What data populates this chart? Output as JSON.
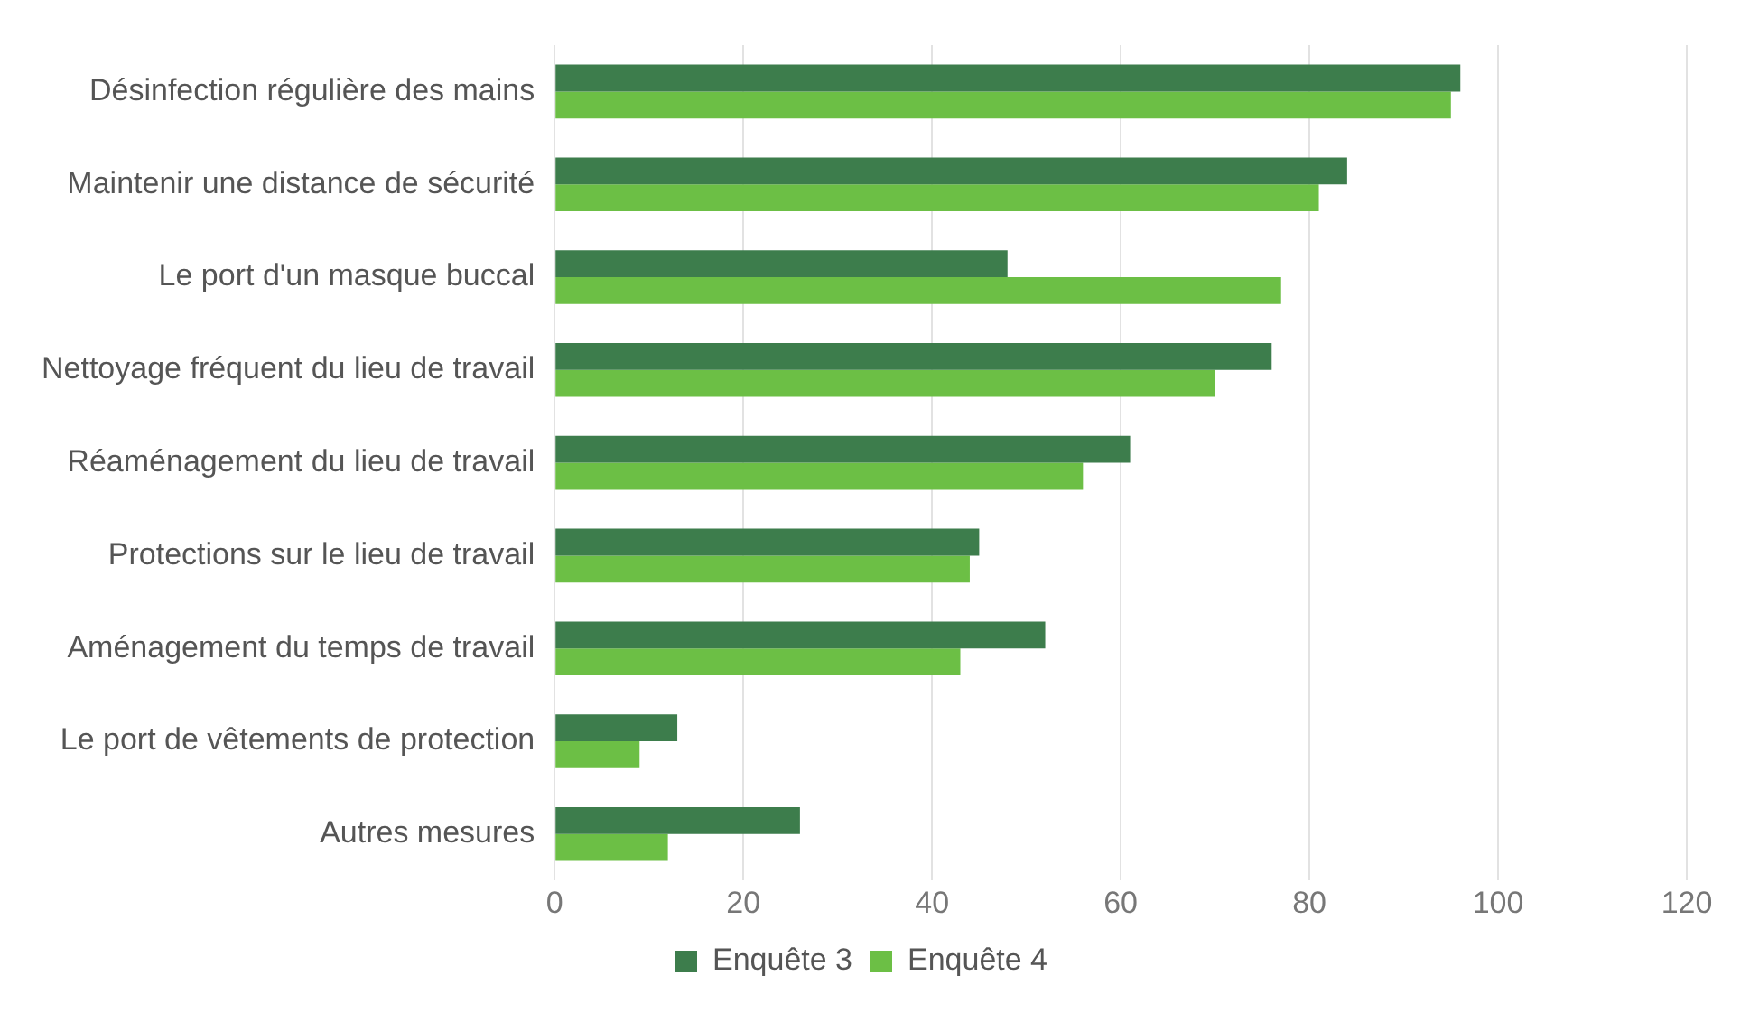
{
  "chart_data": {
    "type": "bar",
    "orientation": "horizontal",
    "categories": [
      "Désinfection régulière des mains",
      "Maintenir une distance de sécurité",
      "Le port d'un masque buccal",
      "Nettoyage fréquent du lieu de travail",
      "Réaménagement du lieu de travail",
      "Protections sur le lieu de travail",
      "Aménagement du temps de travail",
      "Le port de vêtements de protection",
      "Autres mesures"
    ],
    "series": [
      {
        "name": "Enquête 3",
        "color": "#3d7d4c",
        "values": [
          96,
          84,
          48,
          76,
          61,
          45,
          52,
          13,
          26
        ]
      },
      {
        "name": "Enquête 4",
        "color": "#6cbf45",
        "values": [
          95,
          81,
          77,
          70,
          56,
          44,
          43,
          9,
          12
        ]
      }
    ],
    "xlim": [
      0,
      120
    ],
    "xticks": [
      0,
      20,
      40,
      60,
      80,
      100,
      120
    ],
    "grid": "x",
    "legend": "bottom"
  }
}
